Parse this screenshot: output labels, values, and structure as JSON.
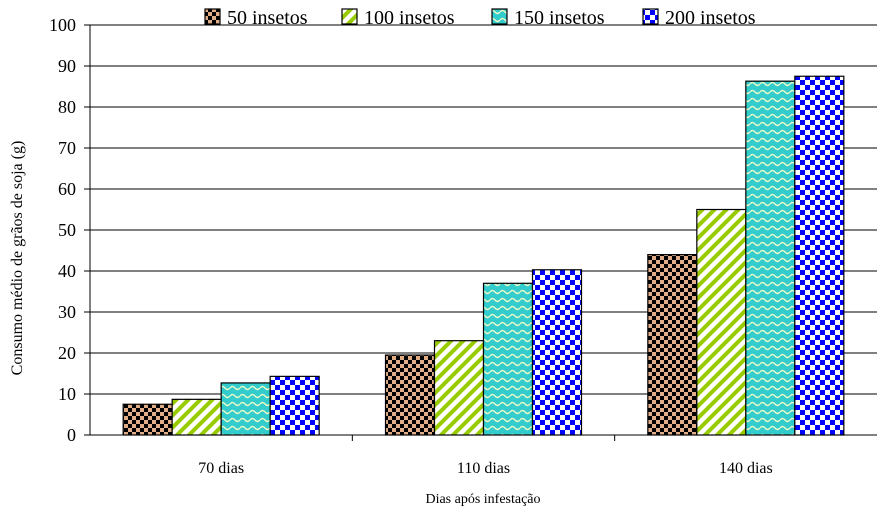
{
  "chart_data": {
    "type": "bar",
    "title": "",
    "xlabel": "Dias após infestação",
    "ylabel": "Consumo médio de grãos de soja (g)",
    "categories": [
      "70 dias",
      "110 dias",
      "140 dias"
    ],
    "ylim": [
      0,
      100
    ],
    "yticks": [
      0,
      10,
      20,
      30,
      40,
      50,
      60,
      70,
      80,
      90,
      100
    ],
    "grid": true,
    "legend_position": "top",
    "series": [
      {
        "name": "50 insetos",
        "values": [
          7.5,
          19.5,
          44
        ],
        "pattern": "checker-brown",
        "color": "#d9a47a"
      },
      {
        "name": "100 insetos",
        "values": [
          8.7,
          23,
          55
        ],
        "pattern": "diagonal-green",
        "color": "#99cc00"
      },
      {
        "name": "150 insetos",
        "values": [
          12.7,
          37,
          86.3
        ],
        "pattern": "wave-teal",
        "color": "#33cccc"
      },
      {
        "name": "200 insetos",
        "values": [
          14.3,
          40.3,
          87.5
        ],
        "pattern": "checker-blue",
        "color": "#0000ff"
      }
    ]
  }
}
